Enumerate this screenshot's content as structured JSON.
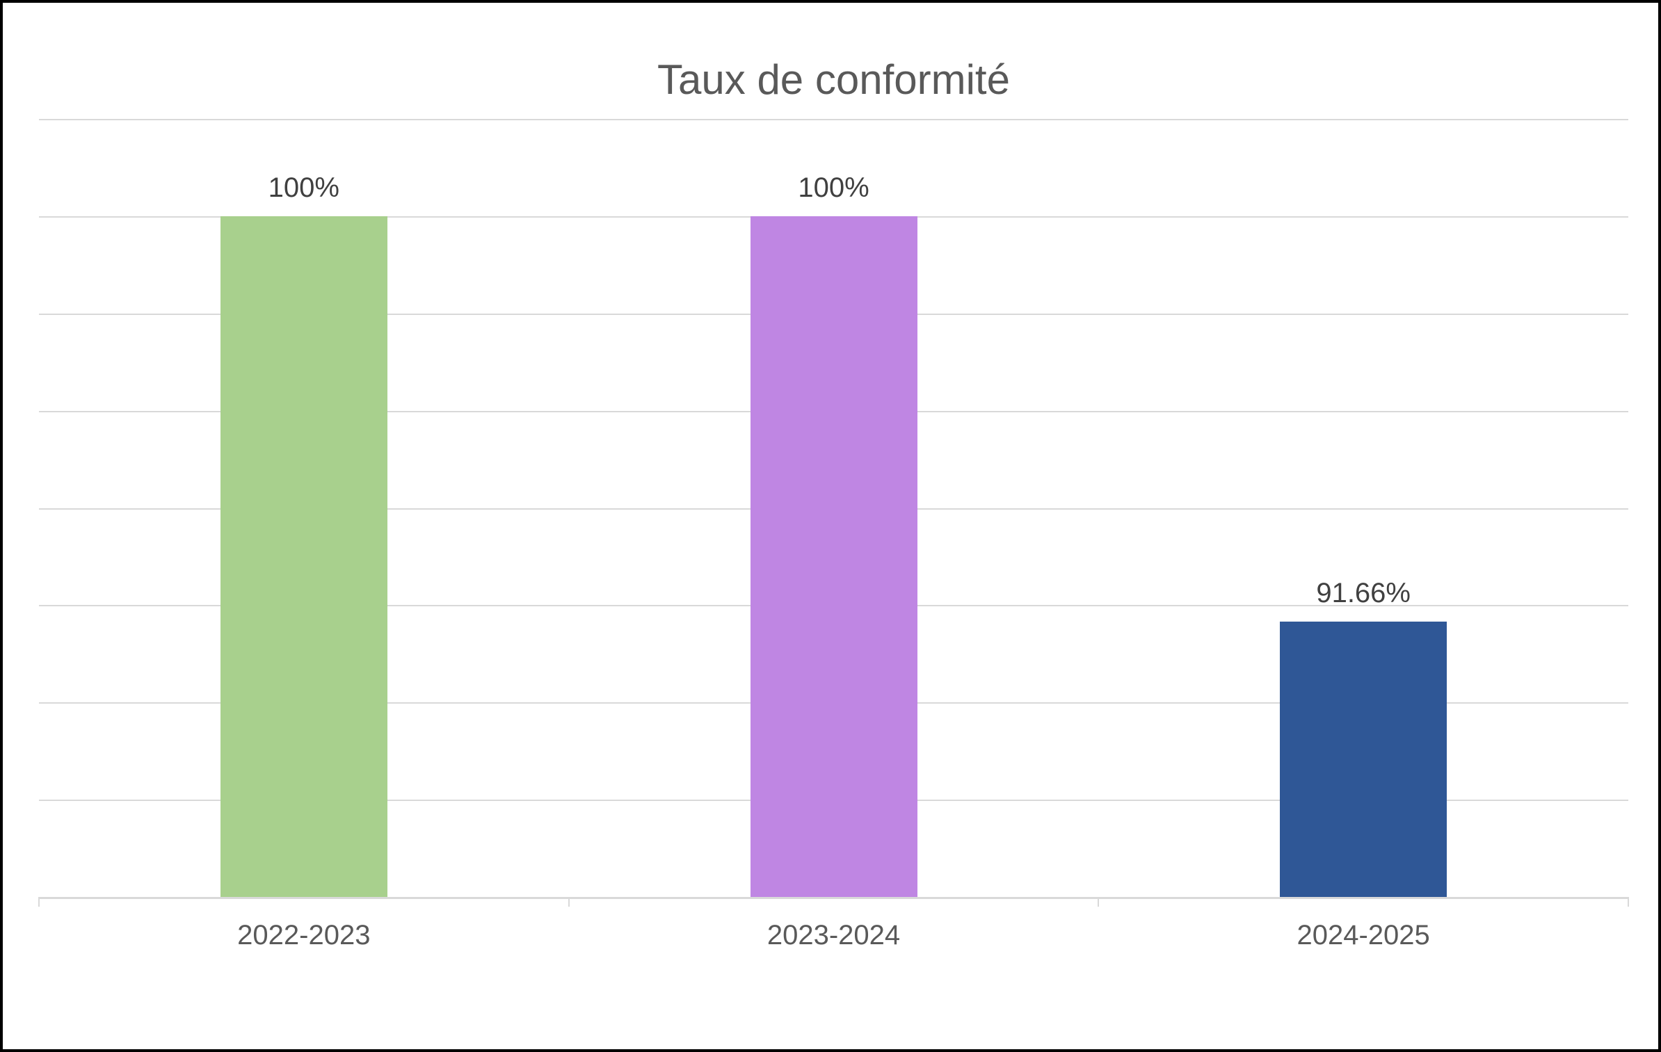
{
  "chart_data": {
    "type": "bar",
    "title": "Taux de conformité",
    "categories": [
      "2022-2023",
      "2023-2024",
      "2024-2025"
    ],
    "values": [
      100,
      100,
      91.66
    ],
    "data_labels": [
      "100%",
      "100%",
      "91.66%"
    ],
    "bar_colors": [
      "#a8d08d",
      "#bf86e3",
      "#2f5796"
    ],
    "unit": "%",
    "ylim": [
      86,
      102
    ],
    "gridline_step": 2,
    "grid": true,
    "legend": "none",
    "xlabel": "",
    "ylabel": ""
  },
  "colors": {
    "title_text": "#595959",
    "data_label_text": "#404040",
    "axis_label_text": "#595959",
    "gridline": "#d9d9d9",
    "axis_line": "#d9d9d9",
    "background": "#ffffff",
    "frame_border": "#000000"
  }
}
